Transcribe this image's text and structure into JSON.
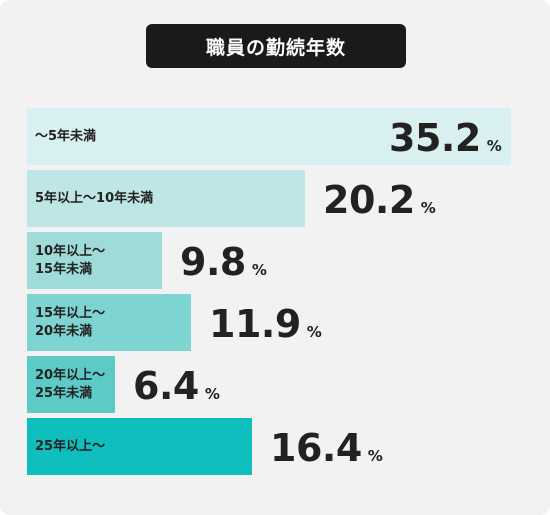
{
  "chart_data": {
    "type": "bar",
    "orientation": "horizontal",
    "title": "職員の勤続年数",
    "unit": "%",
    "categories": [
      "〜5年未満",
      "5年以上〜10年未満",
      "10年以上〜15年未満",
      "15年以上〜20年未満",
      "20年以上〜25年未満",
      "25年以上〜"
    ],
    "category_lines": [
      [
        "〜5年未満"
      ],
      [
        "5年以上〜10年未満"
      ],
      [
        "10年以上〜",
        "15年未満"
      ],
      [
        "15年以上〜",
        "20年未満"
      ],
      [
        "20年以上〜",
        "25年未満"
      ],
      [
        "25年以上〜"
      ]
    ],
    "values": [
      35.2,
      20.2,
      9.8,
      11.9,
      6.4,
      16.4
    ],
    "value_labels": [
      "35.2",
      "20.2",
      "9.8",
      "11.9",
      "6.4",
      "16.4"
    ],
    "colors": [
      "#d9f0f0",
      "#bde6e4",
      "#9fdcd9",
      "#7ed4d0",
      "#5ccbc7",
      "#0fbfbd"
    ],
    "xlim": [
      0,
      36
    ],
    "legend": "none",
    "grid": false
  }
}
